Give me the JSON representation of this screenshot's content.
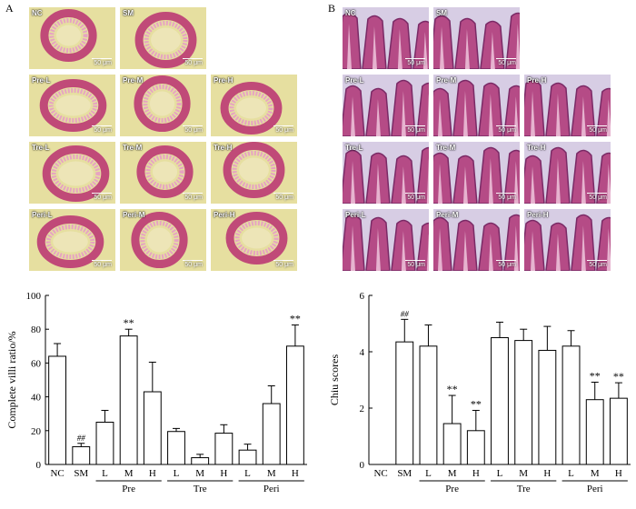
{
  "panels": {
    "a_letter": "A",
    "b_letter": "B"
  },
  "panel_a_tiles": [
    {
      "label": "NC",
      "scale": "50 μm"
    },
    {
      "label": "SM",
      "scale": "50 μm"
    },
    {
      "label": "Pre-L",
      "scale": "50 μm"
    },
    {
      "label": "Pre-M",
      "scale": "50 μm"
    },
    {
      "label": "Pre-H",
      "scale": "50 μm"
    },
    {
      "label": "Tre-L",
      "scale": "50 μm"
    },
    {
      "label": "Tre-M",
      "scale": "50 μm"
    },
    {
      "label": "Tre-H",
      "scale": "50 μm"
    },
    {
      "label": "Peri-L",
      "scale": "50 μm"
    },
    {
      "label": "Peri-M",
      "scale": "50 μm"
    },
    {
      "label": "Peri-H",
      "scale": "50 μm"
    }
  ],
  "panel_b_tiles": [
    {
      "label": "NC",
      "scale": "50 μm"
    },
    {
      "label": "SM",
      "scale": "50 μm"
    },
    {
      "label": "Pre-L",
      "scale": "50 μm"
    },
    {
      "label": "Pre-M",
      "scale": "50 μm"
    },
    {
      "label": "Pre-H",
      "scale": "50 μm"
    },
    {
      "label": "Tre-L",
      "scale": "50 μm"
    },
    {
      "label": "Tre-M",
      "scale": "50 μm"
    },
    {
      "label": "Tre-H",
      "scale": "50 μm"
    },
    {
      "label": "Peri-L",
      "scale": "50 μm"
    },
    {
      "label": "Peri-M",
      "scale": "50 μm"
    },
    {
      "label": "Peri-H",
      "scale": "50 μm"
    }
  ],
  "colors": {
    "a_bg": "#e6dfa0",
    "a_tissue": "#c04a78",
    "b_tissue": "#b54b86",
    "b_bg": "#d7cde4"
  },
  "chart_data": [
    {
      "type": "bar",
      "categories": [
        "NC",
        "SM",
        "L",
        "M",
        "H",
        "L",
        "M",
        "H",
        "L",
        "M",
        "H"
      ],
      "groups": [
        {
          "label": "Pre",
          "from": 2,
          "to": 4
        },
        {
          "label": "Tre",
          "from": 5,
          "to": 7
        },
        {
          "label": "Peri",
          "from": 8,
          "to": 10
        }
      ],
      "values": [
        64,
        10.5,
        25,
        76,
        43,
        19.5,
        4,
        18.5,
        8.5,
        36,
        70
      ],
      "errors": [
        7.5,
        2,
        7,
        4,
        17.5,
        1.8,
        2,
        5,
        3.5,
        10.5,
        12.5
      ],
      "annotations": [
        "",
        "##",
        "",
        "**",
        "",
        "",
        "",
        "",
        "",
        "",
        "**"
      ],
      "ylabel": "Complete villi ratio/%",
      "ylim": [
        0,
        100
      ],
      "yticks": [
        "0",
        "20",
        "40",
        "60",
        "80",
        "100"
      ]
    },
    {
      "type": "bar",
      "categories": [
        "NC",
        "SM",
        "L",
        "M",
        "H",
        "L",
        "M",
        "H",
        "L",
        "M",
        "H"
      ],
      "groups": [
        {
          "label": "Pre",
          "from": 2,
          "to": 4
        },
        {
          "label": "Tre",
          "from": 5,
          "to": 7
        },
        {
          "label": "Peri",
          "from": 8,
          "to": 10
        }
      ],
      "values": [
        0,
        4.35,
        4.2,
        1.45,
        1.2,
        4.5,
        4.4,
        4.05,
        4.2,
        2.3,
        2.35
      ],
      "errors": [
        0,
        0.8,
        0.75,
        1.0,
        0.72,
        0.55,
        0.4,
        0.85,
        0.55,
        0.62,
        0.55
      ],
      "annotations": [
        "",
        "##",
        "",
        "**",
        "**",
        "",
        "",
        "",
        "",
        "**",
        "**"
      ],
      "ylabel": "Chiu scores",
      "ylim": [
        0,
        6
      ],
      "yticks": [
        "0",
        "2",
        "4",
        "6"
      ]
    }
  ]
}
